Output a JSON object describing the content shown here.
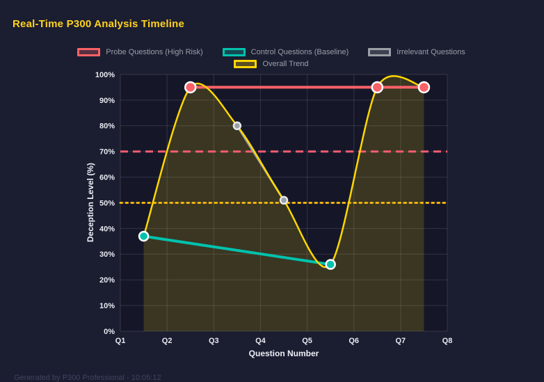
{
  "page": {
    "title": "Real-Time P300 Analysis Timeline",
    "title_color": "#ffd21e",
    "background": "#1b1d31",
    "footer": "Generated by P300 Professional - 10:05:12"
  },
  "chart_data": {
    "type": "line",
    "title": "Real-Time P300 Analysis Timeline",
    "xlabel": "Question Number",
    "ylabel": "Deception Level (%)",
    "x_ticks": [
      "Q1",
      "Q2",
      "Q3",
      "Q4",
      "Q5",
      "Q6",
      "Q7",
      "Q8"
    ],
    "x_range": [
      1,
      8
    ],
    "y_ticks": [
      "0%",
      "10%",
      "20%",
      "30%",
      "40%",
      "50%",
      "60%",
      "70%",
      "80%",
      "90%",
      "100%"
    ],
    "ylim": [
      0,
      100
    ],
    "grid": true,
    "legend_position": "top",
    "legend_rows": [
      [
        0,
        1,
        2
      ],
      [
        3
      ]
    ],
    "series": [
      {
        "name": "Probe Questions (High Risk)",
        "color": "#f96267",
        "line_width": 4,
        "point_radius": 7.5,
        "point_border": "#ffffff",
        "points": [
          [
            2.5,
            95
          ],
          [
            6.5,
            95
          ],
          [
            7.5,
            95
          ]
        ]
      },
      {
        "name": "Control Questions (Baseline)",
        "color": "#00c2ad",
        "line_width": 4,
        "point_radius": 6.5,
        "point_border": "#ffffff",
        "points": [
          [
            1.5,
            37
          ],
          [
            5.5,
            26
          ]
        ]
      },
      {
        "name": "Irrelevant Questions",
        "color": "#9aa0a6",
        "line_width": 3,
        "point_radius": 5,
        "point_border": "#e8e8ea",
        "points": [
          [
            3.5,
            80
          ],
          [
            4.5,
            51
          ]
        ]
      },
      {
        "name": "Overall Trend",
        "color": "#ffd700",
        "line_width": 2.5,
        "point_radius": 0,
        "smooth": true,
        "fill": true,
        "fill_color": "rgba(255,215,0,0.16)",
        "points": [
          [
            1.5,
            37
          ],
          [
            2.5,
            95
          ],
          [
            3.5,
            80
          ],
          [
            4.5,
            51
          ],
          [
            5.5,
            26
          ],
          [
            6.5,
            95
          ],
          [
            7.5,
            95
          ]
        ]
      }
    ],
    "reference_lines": [
      {
        "value": 70,
        "color": "#f85c70",
        "style": "dashed"
      },
      {
        "value": 50,
        "color": "#f0b40a",
        "style": "dotted"
      }
    ]
  }
}
